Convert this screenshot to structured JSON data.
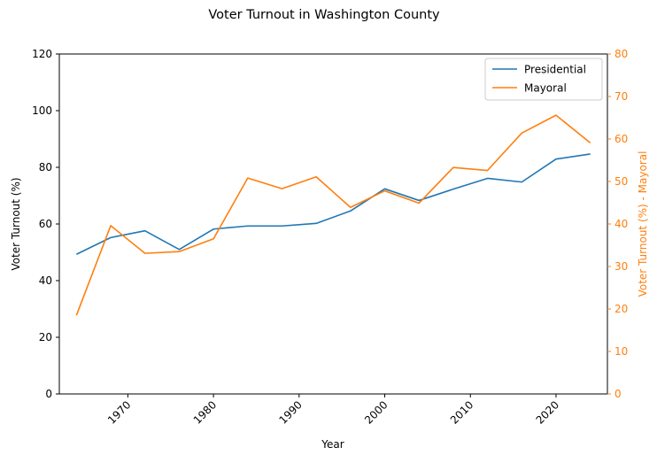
{
  "chart_data": {
    "type": "line",
    "title": "Voter Turnout in Washington County",
    "xlabel": "Year",
    "ylabel_left": "Voter Turnout (%)",
    "ylabel_right": "Voter Turnout (%) - Mayoral",
    "xlim": [
      1962.0,
      2026.0
    ],
    "ylim_left": [
      0,
      120
    ],
    "ylim_right": [
      0,
      80
    ],
    "x_ticks": [
      1970,
      1980,
      1990,
      2000,
      2010,
      2020
    ],
    "y_ticks_left": [
      0,
      20,
      40,
      60,
      80,
      100,
      120
    ],
    "y_ticks_right": [
      0,
      10,
      20,
      30,
      40,
      50,
      60,
      70,
      80
    ],
    "grid": false,
    "legend_position": "top-right",
    "x": [
      1964,
      1968,
      1972,
      1976,
      1980,
      1984,
      1988,
      1992,
      1996,
      2000,
      2004,
      2008,
      2012,
      2016,
      2020,
      2024
    ],
    "series": [
      {
        "name": "Presidential",
        "axis": "left",
        "color": "#1f77b4",
        "values": [
          49.3,
          55.2,
          57.6,
          51.0,
          58.2,
          59.3,
          59.3,
          60.2,
          64.6,
          72.4,
          68.3,
          72.3,
          76.1,
          74.8,
          82.9,
          84.7
        ]
      },
      {
        "name": "Mayoral",
        "axis": "right",
        "color": "#ff7f0e",
        "values": [
          18.5,
          39.6,
          33.1,
          33.5,
          36.5,
          50.8,
          48.3,
          51.1,
          43.9,
          47.8,
          44.9,
          53.3,
          52.6,
          61.4,
          65.6,
          59.1
        ]
      }
    ]
  }
}
